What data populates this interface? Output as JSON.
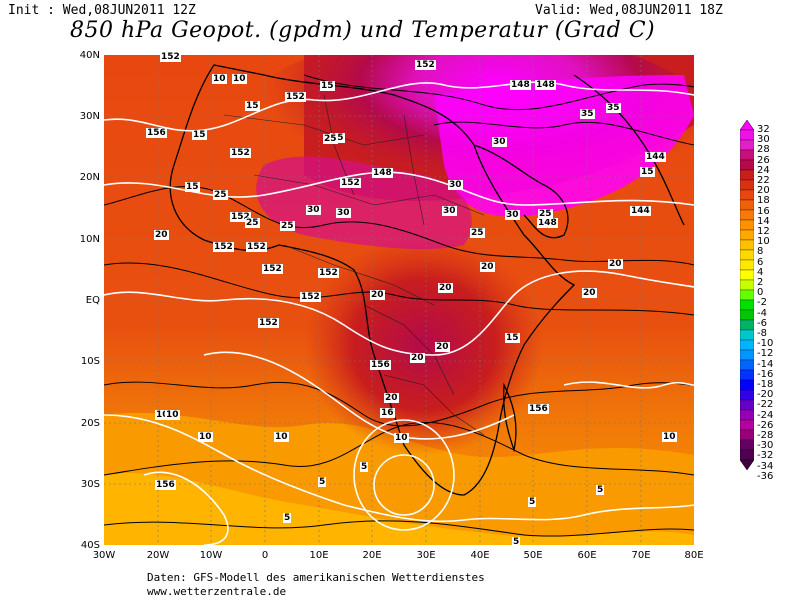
{
  "header": {
    "init_text": "Init : Wed,08JUN2011 12Z",
    "valid_text": "Valid: Wed,08JUN2011 18Z",
    "title": "850 hPa Geopot. (gpdm) und Temperatur (Grad C)"
  },
  "axes": {
    "lat_labels": [
      "40N",
      "30N",
      "20N",
      "10N",
      "EQ",
      "10S",
      "20S",
      "30S",
      "40S"
    ],
    "lon_labels": [
      "30W",
      "20W",
      "10W",
      "0",
      "10E",
      "20E",
      "30E",
      "40E",
      "50E",
      "60E",
      "70E",
      "80E"
    ]
  },
  "colorbar": {
    "labels": [
      "32",
      "30",
      "28",
      "26",
      "24",
      "22",
      "20",
      "18",
      "16",
      "14",
      "12",
      "10",
      "8",
      "6",
      "4",
      "2",
      "0",
      "-2",
      "-4",
      "-6",
      "-8",
      "-10",
      "-12",
      "-14",
      "-16",
      "-18",
      "-20",
      "-22",
      "-24",
      "-26",
      "-28",
      "-30",
      "-32",
      "-34",
      "-36"
    ],
    "colors": [
      "#ff00ff",
      "#f010e8",
      "#e020c8",
      "#c8107a",
      "#b40a4a",
      "#c81e1e",
      "#d83214",
      "#e84810",
      "#f0600a",
      "#f87808",
      "#ff9000",
      "#ffa800",
      "#ffc000",
      "#ffd800",
      "#ffe800",
      "#ffff00",
      "#c8ff00",
      "#64ff00",
      "#00e000",
      "#00c800",
      "#00b464",
      "#00c8c8",
      "#00b4ff",
      "#0096ff",
      "#0064ff",
      "#0032ff",
      "#0000ff",
      "#3200e6",
      "#6400c8",
      "#9600b4",
      "#b400a0",
      "#96007a",
      "#640064",
      "#500050",
      "#400040"
    ]
  },
  "contours": {
    "geopotential_labels": [
      "152",
      "152",
      "152",
      "152",
      "152",
      "152",
      "152",
      "152",
      "152",
      "152",
      "152",
      "152",
      "148",
      "148",
      "148",
      "148",
      "144",
      "144",
      "156",
      "156",
      "156",
      "156"
    ],
    "temperature_labels": [
      "10",
      "10",
      "10",
      "15",
      "15",
      "15",
      "15",
      "15",
      "15",
      "15",
      "20",
      "20",
      "20",
      "20",
      "20",
      "20",
      "20",
      "20",
      "20",
      "25",
      "25",
      "25",
      "25",
      "25",
      "25",
      "30",
      "30",
      "30",
      "30",
      "30",
      "30",
      "35",
      "35",
      "5",
      "5",
      "5",
      "5",
      "5",
      "5",
      "10",
      "10",
      "10",
      "10",
      "10",
      "16"
    ]
  },
  "footer": {
    "line1": "Daten: GFS-Modell des amerikanischen Wetterdienstes",
    "line2": "www.wetterzentrale.de"
  }
}
